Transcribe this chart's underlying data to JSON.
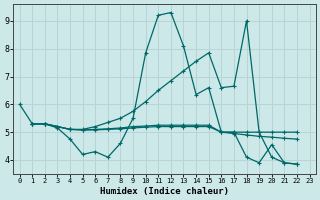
{
  "xlabel": "Humidex (Indice chaleur)",
  "background_color": "#cce8e8",
  "grid_color": "#b8d4d4",
  "line_color": "#006868",
  "xlim": [
    -0.5,
    23.5
  ],
  "ylim": [
    3.5,
    9.6
  ],
  "yticks": [
    4,
    5,
    6,
    7,
    8,
    9
  ],
  "xticks": [
    0,
    1,
    2,
    3,
    4,
    5,
    6,
    7,
    8,
    9,
    10,
    11,
    12,
    13,
    14,
    15,
    16,
    17,
    18,
    19,
    20,
    21,
    22,
    23
  ],
  "line_a_x": [
    0,
    1,
    2,
    3,
    4,
    5,
    6,
    7,
    8,
    9,
    10,
    11,
    12,
    13,
    14,
    15,
    16,
    17,
    18,
    19,
    20,
    21,
    22
  ],
  "line_a_y": [
    6.0,
    5.3,
    5.3,
    5.15,
    4.75,
    4.2,
    4.3,
    4.1,
    4.6,
    5.5,
    7.85,
    9.2,
    9.3,
    8.1,
    6.35,
    6.6,
    5.0,
    5.0,
    4.1,
    3.9,
    4.55,
    3.9,
    3.85
  ],
  "line_b_x": [
    1,
    2,
    3,
    4,
    5,
    6,
    7,
    8,
    9,
    10,
    11,
    12,
    13,
    14,
    15,
    16,
    17,
    18,
    19,
    20,
    21,
    22
  ],
  "line_b_y": [
    5.3,
    5.3,
    5.2,
    5.1,
    5.1,
    5.2,
    5.35,
    5.5,
    5.75,
    6.1,
    6.5,
    6.85,
    7.2,
    7.55,
    7.85,
    6.6,
    6.65,
    9.0,
    5.0,
    4.1,
    3.9,
    3.85
  ],
  "line_c_x": [
    1,
    2,
    3,
    4,
    5,
    6,
    7,
    8,
    9,
    10,
    11,
    12,
    13,
    14,
    15,
    16,
    17,
    18,
    19,
    20,
    21,
    22
  ],
  "line_c_y": [
    5.3,
    5.3,
    5.2,
    5.1,
    5.08,
    5.08,
    5.1,
    5.12,
    5.15,
    5.18,
    5.2,
    5.2,
    5.2,
    5.2,
    5.2,
    5.0,
    4.95,
    4.9,
    4.85,
    4.82,
    4.78,
    4.75
  ],
  "line_d_x": [
    1,
    2,
    3,
    4,
    5,
    6,
    7,
    8,
    9,
    10,
    11,
    12,
    13,
    14,
    15,
    16,
    17,
    18,
    19,
    20,
    21,
    22
  ],
  "line_d_y": [
    5.3,
    5.3,
    5.2,
    5.1,
    5.08,
    5.1,
    5.12,
    5.15,
    5.2,
    5.22,
    5.25,
    5.25,
    5.25,
    5.25,
    5.25,
    5.0,
    5.0,
    5.0,
    5.0,
    5.0,
    5.0,
    5.0
  ]
}
